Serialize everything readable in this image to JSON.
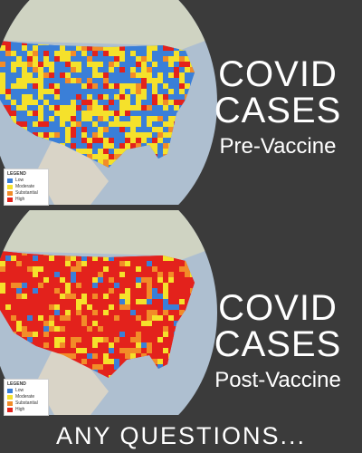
{
  "top_panel": {
    "title": "COVID",
    "title2": "CASES",
    "subtitle": "Pre-Vaccine",
    "legend": {
      "title": "LEGEND",
      "items": [
        {
          "label": "Low",
          "color": "#3a7fd8"
        },
        {
          "label": "Moderate",
          "color": "#f5e12b"
        },
        {
          "label": "Substantial",
          "color": "#f28c28"
        },
        {
          "label": "High",
          "color": "#e3221c"
        }
      ]
    }
  },
  "bottom_panel": {
    "title": "COVID",
    "title2": "CASES",
    "subtitle": "Post-Vaccine",
    "legend": {
      "title": "LEGEND",
      "items": [
        {
          "label": "Low",
          "color": "#3a7fd8"
        },
        {
          "label": "Moderate",
          "color": "#f5e12b"
        },
        {
          "label": "Substantial",
          "color": "#f28c28"
        },
        {
          "label": "High",
          "color": "#e3221c"
        }
      ]
    }
  },
  "footer": {
    "text": "ANY QUESTIONS..."
  },
  "colors": {
    "background": "#3b3b3b",
    "ocean": "#aebfd0",
    "land": "#d9d4c7",
    "text": "#ffffff"
  }
}
